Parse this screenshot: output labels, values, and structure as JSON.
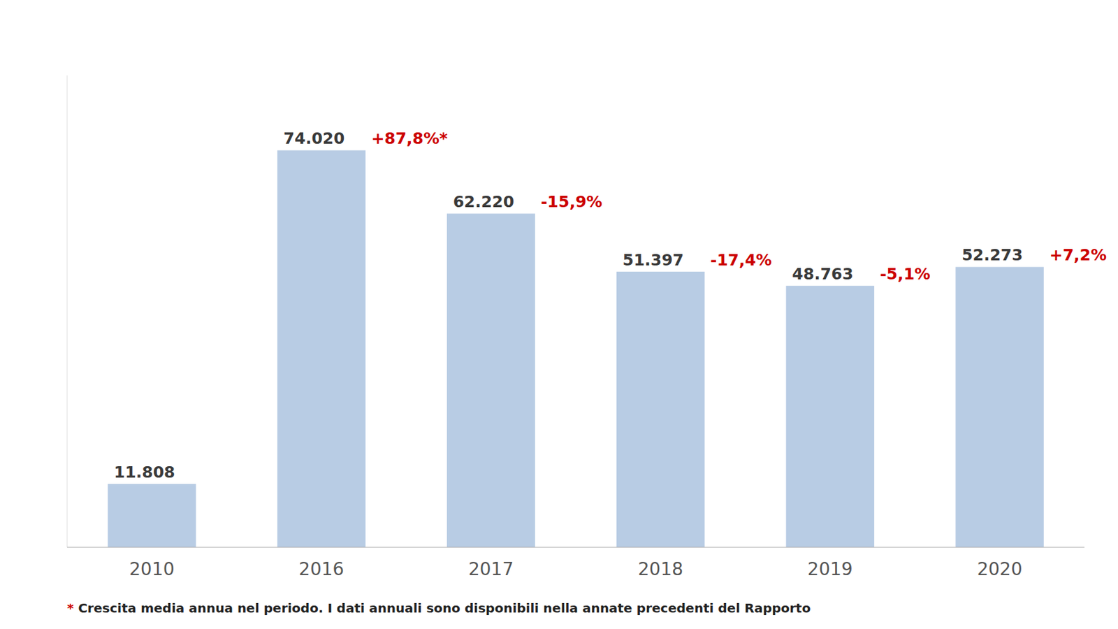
{
  "chart_data": {
    "type": "bar",
    "categories": [
      "2010",
      "2016",
      "2017",
      "2018",
      "2019",
      "2020"
    ],
    "values": [
      11808,
      74020,
      62220,
      51397,
      48763,
      52273
    ],
    "value_labels": [
      "11.808",
      "74.020",
      "62.220",
      "51.397",
      "48.763",
      "52.273"
    ],
    "data_labels": true,
    "color": "#b8cce4",
    "ylim": [
      0,
      88000
    ],
    "grid": false,
    "tick_labels": "x",
    "annotations": [
      {
        "category": "2016",
        "text": "+87,8%*",
        "color": "#cc0000"
      },
      {
        "category": "2017",
        "text": "-15,9%",
        "color": "#cc0000"
      },
      {
        "category": "2018",
        "text": "-17,4%",
        "color": "#cc0000"
      },
      {
        "category": "2019",
        "text": "-5,1%",
        "color": "#cc0000"
      },
      {
        "category": "2020",
        "text": "+7,2%",
        "color": "#cc0000"
      }
    ],
    "footnote": [
      {
        "text": "*",
        "color": "#cc0000"
      },
      {
        "text": " Crescita media annua nel periodo. I dati annuali sono disponibili nella annate precedenti del Rapporto",
        "color": "#222222"
      }
    ]
  }
}
